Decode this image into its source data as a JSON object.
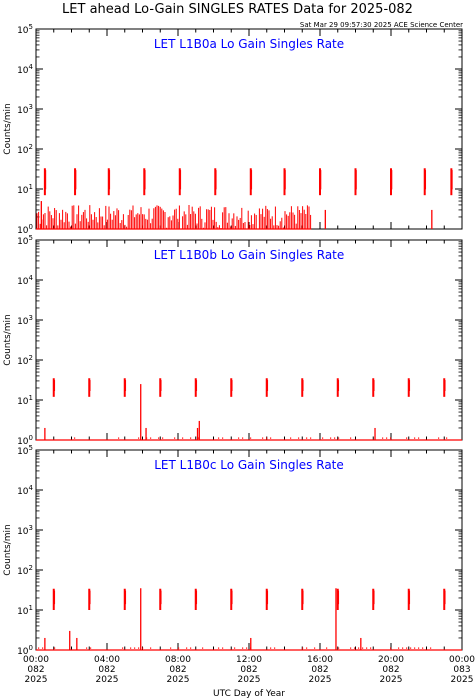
{
  "title": "LET ahead Lo-Gain SINGLES RATES Data for 2025-082",
  "timestamp": "Sat Mar 29 09:57:30 2025 ACE Science Center",
  "colors": {
    "data": "#ff0000",
    "panel_title": "#0000ff",
    "axes": "#000000"
  },
  "chart_data": [
    {
      "type": "scatter",
      "title": "LET L1B0a Lo Gain Singles Rate",
      "ylabel": "Counts/min",
      "xlabel": "",
      "yscale": "log",
      "ylim": [
        1,
        100000
      ],
      "xlim": [
        0,
        24
      ],
      "y_ticks": [
        1,
        10,
        100,
        1000,
        10000,
        100000
      ],
      "y_tick_labels": [
        "10^0",
        "10^1",
        "10^2",
        "10^3",
        "10^4",
        "10^5"
      ],
      "spike_hours": [
        0.5,
        2.2,
        4.1,
        6.1,
        8.1,
        10.1,
        12.1,
        14.0,
        16.0,
        18.0,
        20.0,
        21.9,
        23.4
      ],
      "spike_peak": 33,
      "spike_low": 7,
      "background_level": [
        1,
        4
      ],
      "background_end_hour": 15.5,
      "outliers": [
        {
          "x": 0.3,
          "y": 5
        },
        {
          "x": 16.3,
          "y": 3
        },
        {
          "x": 22.3,
          "y": 3
        }
      ]
    },
    {
      "type": "scatter",
      "title": "LET L1B0b Lo Gain Singles Rate",
      "ylabel": "Counts/min",
      "xlabel": "",
      "yscale": "log",
      "ylim": [
        1,
        100000
      ],
      "xlim": [
        0,
        24
      ],
      "y_ticks": [
        1,
        10,
        100,
        1000,
        10000,
        100000
      ],
      "y_tick_labels": [
        "10^0",
        "10^1",
        "10^2",
        "10^3",
        "10^4",
        "10^5"
      ],
      "spike_hours": [
        1.0,
        3.0,
        5.0,
        7.0,
        9.0,
        11.0,
        13.0,
        15.0,
        17.0,
        19.0,
        21.0,
        23.0
      ],
      "spike_peak": 35,
      "spike_low": 12,
      "background_level": [
        1,
        1
      ],
      "background_end_hour": 24,
      "outliers": [
        {
          "x": 0.5,
          "y": 2
        },
        {
          "x": 5.9,
          "y": 25
        },
        {
          "x": 6.2,
          "y": 2
        },
        {
          "x": 9.1,
          "y": 2
        },
        {
          "x": 9.2,
          "y": 3
        },
        {
          "x": 19.1,
          "y": 2
        }
      ]
    },
    {
      "type": "scatter",
      "title": "LET L1B0c Lo Gain Singles Rate",
      "ylabel": "Counts/min",
      "xlabel": "UTC Day of Year",
      "yscale": "log",
      "ylim": [
        1,
        100000
      ],
      "xlim": [
        0,
        24
      ],
      "y_ticks": [
        1,
        10,
        100,
        1000,
        10000,
        100000
      ],
      "y_tick_labels": [
        "10^0",
        "10^1",
        "10^2",
        "10^3",
        "10^4",
        "10^5"
      ],
      "spike_hours": [
        1.0,
        3.0,
        5.0,
        7.0,
        9.0,
        11.0,
        13.0,
        15.0,
        17.0,
        19.0,
        21.0,
        23.0
      ],
      "spike_peak": 34,
      "spike_low": 10,
      "background_level": [
        1,
        1
      ],
      "background_end_hour": 24,
      "outliers": [
        {
          "x": 0.5,
          "y": 2
        },
        {
          "x": 1.9,
          "y": 3
        },
        {
          "x": 2.3,
          "y": 2
        },
        {
          "x": 5.9,
          "y": 35
        },
        {
          "x": 12.1,
          "y": 2
        },
        {
          "x": 16.9,
          "y": 35
        },
        {
          "x": 18.3,
          "y": 2
        }
      ]
    }
  ],
  "x_ticks": [
    {
      "hour": 0,
      "time": "00:00",
      "doy": "082",
      "year": "2025"
    },
    {
      "hour": 4,
      "time": "04:00",
      "doy": "082",
      "year": "2025"
    },
    {
      "hour": 8,
      "time": "08:00",
      "doy": "082",
      "year": "2025"
    },
    {
      "hour": 12,
      "time": "12:00",
      "doy": "082",
      "year": "2025"
    },
    {
      "hour": 16,
      "time": "16:00",
      "doy": "082",
      "year": "2025"
    },
    {
      "hour": 20,
      "time": "20:00",
      "doy": "082",
      "year": "2025"
    },
    {
      "hour": 24,
      "time": "00:00",
      "doy": "083",
      "year": "2025"
    }
  ]
}
